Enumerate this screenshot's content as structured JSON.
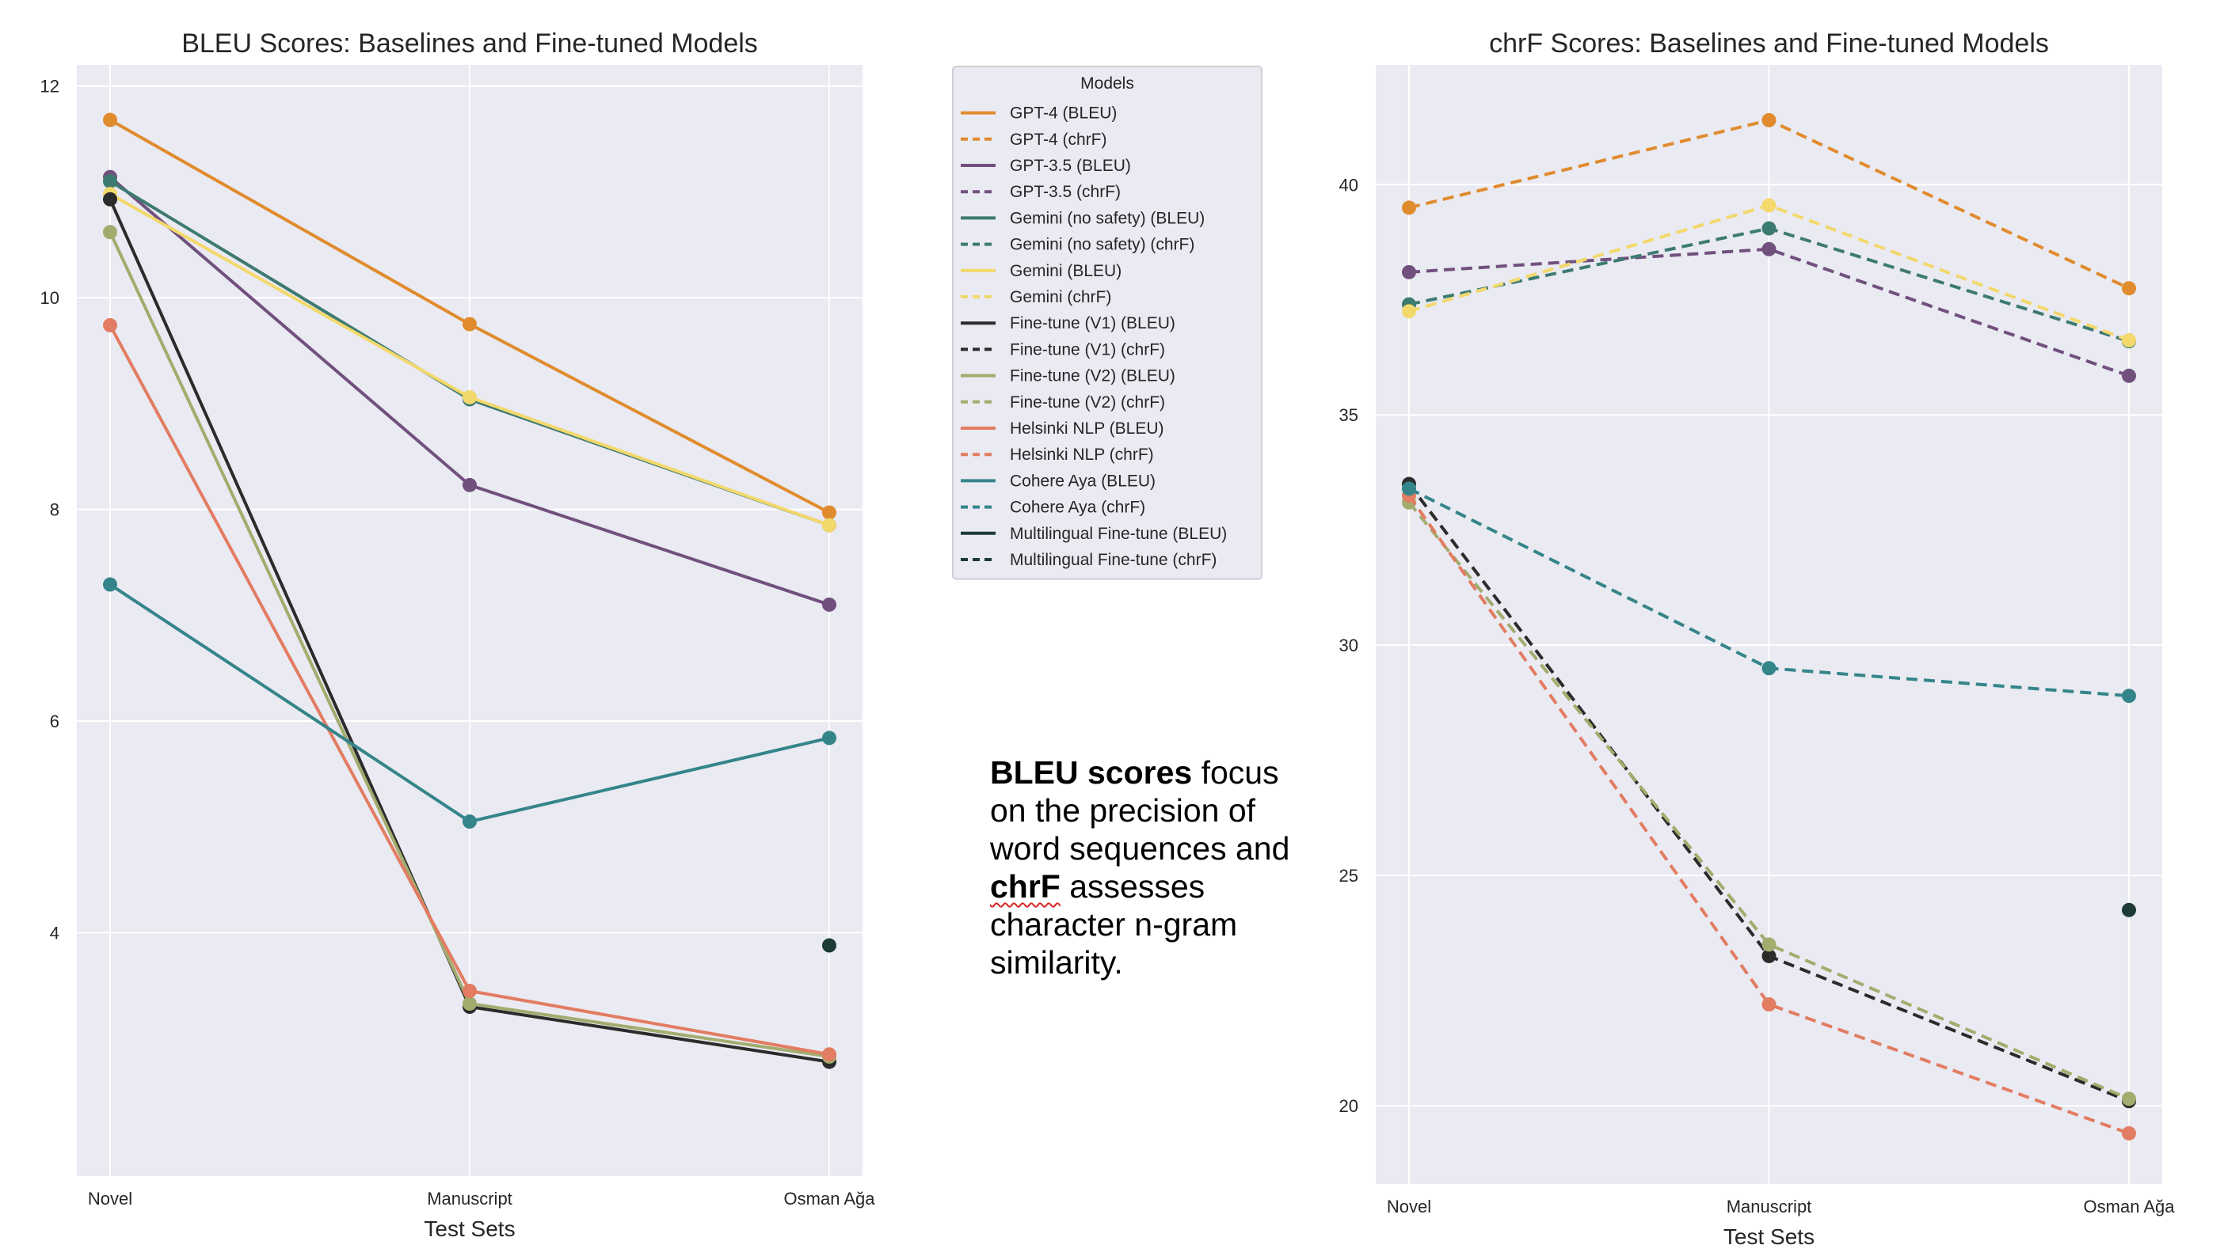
{
  "chart_data": [
    {
      "type": "line",
      "title": "BLEU Scores: Baselines and Fine-tuned Models",
      "xlabel": "Test Sets",
      "ylabel": "",
      "categories": [
        "Novel",
        "Manuscript",
        "Osman Ağa"
      ],
      "ylim": [
        1.7,
        12.2
      ],
      "yticks": [
        4,
        6,
        8,
        10,
        12
      ],
      "grid": true,
      "series": [
        {
          "name": "GPT-4 (BLEU)",
          "color": "#e08b2d",
          "dash": "solid",
          "values": [
            11.68,
            9.75,
            7.97
          ]
        },
        {
          "name": "GPT-3.5 (BLEU)",
          "color": "#71507e",
          "dash": "solid",
          "values": [
            11.14,
            8.23,
            7.1
          ]
        },
        {
          "name": "Gemini (no safety) (BLEU)",
          "color": "#3d7a72",
          "dash": "solid",
          "values": [
            11.1,
            9.04,
            7.85
          ]
        },
        {
          "name": "Gemini (BLEU)",
          "color": "#f3d86b",
          "dash": "solid",
          "values": [
            10.98,
            9.06,
            7.85
          ]
        },
        {
          "name": "Fine-tune (V1) (BLEU)",
          "color": "#2b2b2b",
          "dash": "solid",
          "values": [
            10.93,
            3.3,
            2.78
          ]
        },
        {
          "name": "Fine-tune (V2) (BLEU)",
          "color": "#a2ac6e",
          "dash": "solid",
          "values": [
            10.62,
            3.33,
            2.83
          ]
        },
        {
          "name": "Helsinki NLP (BLEU)",
          "color": "#e27c62",
          "dash": "solid",
          "values": [
            9.74,
            3.45,
            2.85
          ]
        },
        {
          "name": "Cohere Aya (BLEU)",
          "color": "#34858a",
          "dash": "solid",
          "values": [
            7.29,
            5.05,
            5.84
          ]
        },
        {
          "name": "Multilingual Fine-tune (BLEU)",
          "color": "#1c3a36",
          "dash": "solid",
          "values": [
            null,
            null,
            3.88
          ]
        }
      ]
    },
    {
      "type": "line",
      "title": "chrF Scores: Baselines and Fine-tuned Models",
      "xlabel": "Test Sets",
      "ylabel": "",
      "categories": [
        "Novel",
        "Manuscript",
        "Osman Ağa"
      ],
      "ylim": [
        18.3,
        42.6
      ],
      "yticks": [
        20,
        25,
        30,
        35,
        40
      ],
      "grid": true,
      "series": [
        {
          "name": "GPT-4 (chrF)",
          "color": "#e08b2d",
          "dash": "dashed",
          "values": [
            39.5,
            41.4,
            37.75
          ]
        },
        {
          "name": "GPT-3.5 (chrF)",
          "color": "#71507e",
          "dash": "dashed",
          "values": [
            38.1,
            38.6,
            35.85
          ]
        },
        {
          "name": "Gemini (no safety) (chrF)",
          "color": "#3d7a72",
          "dash": "dashed",
          "values": [
            37.4,
            39.05,
            36.6
          ]
        },
        {
          "name": "Gemini (chrF)",
          "color": "#f3d86b",
          "dash": "dashed",
          "values": [
            37.25,
            39.55,
            36.62
          ]
        },
        {
          "name": "Fine-tune (V1) (chrF)",
          "color": "#2b2b2b",
          "dash": "dashed",
          "values": [
            33.5,
            23.25,
            20.1
          ]
        },
        {
          "name": "Fine-tune (V2) (chrF)",
          "color": "#a2ac6e",
          "dash": "dashed",
          "values": [
            33.1,
            23.5,
            20.15
          ]
        },
        {
          "name": "Helsinki NLP (chrF)",
          "color": "#e27c62",
          "dash": "dashed",
          "values": [
            33.25,
            22.2,
            19.4
          ]
        },
        {
          "name": "Cohere Aya (chrF)",
          "color": "#34858a",
          "dash": "dashed",
          "values": [
            33.4,
            29.5,
            28.9
          ]
        },
        {
          "name": "Multilingual Fine-tune (chrF)",
          "color": "#1c3a36",
          "dash": "dashed",
          "values": [
            null,
            null,
            24.25
          ]
        }
      ]
    }
  ],
  "legend": {
    "title": "Models",
    "placement": "between charts, top",
    "entries": [
      {
        "label": "GPT-4 (BLEU)",
        "color": "#e08b2d",
        "dash": "solid"
      },
      {
        "label": "GPT-4 (chrF)",
        "color": "#e08b2d",
        "dash": "dashed"
      },
      {
        "label": "GPT-3.5 (BLEU)",
        "color": "#71507e",
        "dash": "solid"
      },
      {
        "label": "GPT-3.5 (chrF)",
        "color": "#71507e",
        "dash": "dashed"
      },
      {
        "label": "Gemini (no safety) (BLEU)",
        "color": "#3d7a72",
        "dash": "solid"
      },
      {
        "label": "Gemini (no safety) (chrF)",
        "color": "#3d7a72",
        "dash": "dashed"
      },
      {
        "label": "Gemini (BLEU)",
        "color": "#f3d86b",
        "dash": "solid"
      },
      {
        "label": "Gemini (chrF)",
        "color": "#f3d86b",
        "dash": "dashed"
      },
      {
        "label": "Fine-tune (V1) (BLEU)",
        "color": "#2b2b2b",
        "dash": "solid"
      },
      {
        "label": "Fine-tune (V1) (chrF)",
        "color": "#2b2b2b",
        "dash": "dashed"
      },
      {
        "label": "Fine-tune (V2) (BLEU)",
        "color": "#a2ac6e",
        "dash": "solid"
      },
      {
        "label": "Fine-tune (V2) (chrF)",
        "color": "#a2ac6e",
        "dash": "dashed"
      },
      {
        "label": "Helsinki NLP (BLEU)",
        "color": "#e27c62",
        "dash": "solid"
      },
      {
        "label": "Helsinki NLP (chrF)",
        "color": "#e27c62",
        "dash": "dashed"
      },
      {
        "label": "Cohere Aya (BLEU)",
        "color": "#34858a",
        "dash": "solid"
      },
      {
        "label": "Cohere Aya (chrF)",
        "color": "#34858a",
        "dash": "dashed"
      },
      {
        "label": "Multilingual Fine-tune (BLEU)",
        "color": "#1c3a36",
        "dash": "solid"
      },
      {
        "label": "Multilingual Fine-tune (chrF)",
        "color": "#1c3a36",
        "dash": "dashed"
      }
    ]
  },
  "note": {
    "bleu_term": "BLEU scores",
    "bleu_desc": " focus on the precision of word sequences and ",
    "chrf_term": "chrF",
    "chrf_desc": " assesses character n-gram similarity."
  }
}
